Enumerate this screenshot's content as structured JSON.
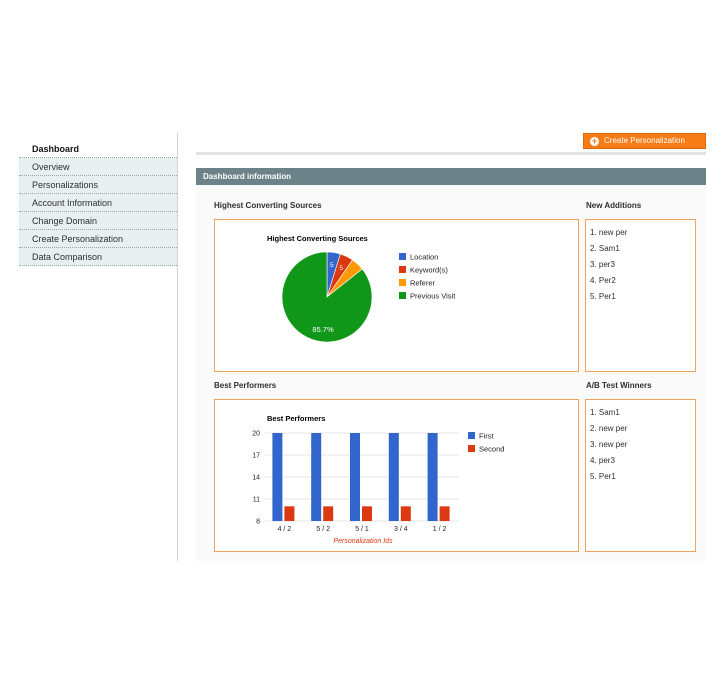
{
  "sidebar": {
    "items": [
      {
        "label": "Dashboard"
      },
      {
        "label": "Overview"
      },
      {
        "label": "Personalizations"
      },
      {
        "label": "Account Information"
      },
      {
        "label": "Change Domain"
      },
      {
        "label": "Create Personalization"
      },
      {
        "label": "Data Comparison"
      }
    ]
  },
  "header": {
    "create_button_label": "Create Personalization"
  },
  "panel": {
    "title": "Dashboard information"
  },
  "sections": {
    "sources_title": "Highest Converting Sources",
    "new_additions_title": "New Additions",
    "best_performers_title": "Best Performers",
    "ab_winners_title": "A/B Test Winners"
  },
  "new_additions": [
    "1. new per",
    "2. Sam1",
    "3. per3",
    "4. Per2",
    "5. Per1"
  ],
  "ab_winners": [
    "1. Sam1",
    "2. new per",
    "3. new per",
    "4. per3",
    "5. Per1"
  ],
  "colors": {
    "blue": "#3366cc",
    "red": "#dc3912",
    "orange": "#ff9900",
    "green": "#109618",
    "accent": "#f77c16"
  },
  "chart_data": [
    {
      "type": "pie",
      "title": "Highest Converting Sources",
      "labels": [
        "Location",
        "Keyword(s)",
        "Referer",
        "Previous Visit"
      ],
      "values": [
        4.8,
        4.8,
        4.7,
        85.7
      ],
      "slice_labels": [
        "5",
        "5",
        "",
        "85.7%"
      ],
      "legend_position": "right"
    },
    {
      "type": "bar",
      "title": "Best Performers",
      "categories": [
        "4 / 2",
        "5 / 2",
        "5 / 1",
        "3 / 4",
        "1 / 2"
      ],
      "series": [
        {
          "name": "First",
          "values": [
            20,
            20,
            20,
            20,
            20
          ]
        },
        {
          "name": "Second",
          "values": [
            10,
            10,
            10,
            10,
            10
          ]
        }
      ],
      "xlabel": "Personalization Ids",
      "ylabel": "",
      "ylim": [
        8,
        20
      ],
      "yticks": [
        "20",
        "17",
        "14",
        "11",
        "8"
      ],
      "grid": true,
      "legend_position": "right"
    }
  ]
}
